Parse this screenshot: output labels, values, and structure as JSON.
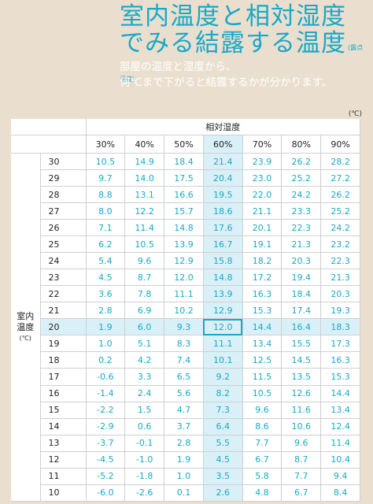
{
  "title": {
    "line1": "室内温度と相対湿度",
    "line2": "でみる結露する温度",
    "small": "(露点温度)"
  },
  "subtitle": {
    "line1": "部屋の温度と湿度から、",
    "line2": "何℃まで下がると結露するかが分かります。"
  },
  "table": {
    "unit_top": "(℃)",
    "col_group_label": "相対湿度",
    "row_group_label": "室内温度",
    "row_group_unit": "(℃)",
    "columns": [
      "30%",
      "40%",
      "50%",
      "60%",
      "70%",
      "80%",
      "90%"
    ],
    "rows": [
      {
        "t": "30",
        "v": [
          "10.5",
          "14.9",
          "18.4",
          "21.4",
          "23.9",
          "26.2",
          "28.2"
        ]
      },
      {
        "t": "29",
        "v": [
          "9.7",
          "14.0",
          "17.5",
          "20.4",
          "23.0",
          "25.2",
          "27.2"
        ]
      },
      {
        "t": "28",
        "v": [
          "8.8",
          "13.1",
          "16.6",
          "19.5",
          "22.0",
          "24.2",
          "26.2"
        ]
      },
      {
        "t": "27",
        "v": [
          "8.0",
          "12.2",
          "15.7",
          "18.6",
          "21.1",
          "23.3",
          "25.2"
        ]
      },
      {
        "t": "26",
        "v": [
          "7.1",
          "11.4",
          "14.8",
          "17.6",
          "20.1",
          "22.3",
          "24.2"
        ]
      },
      {
        "t": "25",
        "v": [
          "6.2",
          "10.5",
          "13.9",
          "16.7",
          "19.1",
          "21.3",
          "23.2"
        ]
      },
      {
        "t": "24",
        "v": [
          "5.4",
          "9.6",
          "12.9",
          "15.8",
          "18.2",
          "20.3",
          "22.3"
        ]
      },
      {
        "t": "23",
        "v": [
          "4.5",
          "8.7",
          "12.0",
          "14.8",
          "17.2",
          "19.4",
          "21.3"
        ]
      },
      {
        "t": "22",
        "v": [
          "3.6",
          "7.8",
          "11.1",
          "13.9",
          "16.3",
          "18.4",
          "20.3"
        ]
      },
      {
        "t": "21",
        "v": [
          "2.8",
          "6.9",
          "10.2",
          "12.9",
          "15.3",
          "17.4",
          "19.3"
        ]
      },
      {
        "t": "20",
        "v": [
          "1.9",
          "6.0",
          "9.3",
          "12.0",
          "14.4",
          "16.4",
          "18.3"
        ]
      },
      {
        "t": "19",
        "v": [
          "1.0",
          "5.1",
          "8.3",
          "11.1",
          "13.4",
          "15.5",
          "17.3"
        ]
      },
      {
        "t": "18",
        "v": [
          "0.2",
          "4.2",
          "7.4",
          "10.1",
          "12.5",
          "14.5",
          "16.3"
        ]
      },
      {
        "t": "17",
        "v": [
          "-0.6",
          "3.3",
          "6.5",
          "9.2",
          "11.5",
          "13.5",
          "15.3"
        ]
      },
      {
        "t": "16",
        "v": [
          "-1.4",
          "2.4",
          "5.6",
          "8.2",
          "10.5",
          "12.6",
          "14.4"
        ]
      },
      {
        "t": "15",
        "v": [
          "-2.2",
          "1.5",
          "4.7",
          "7.3",
          "9.6",
          "11.6",
          "13.4"
        ]
      },
      {
        "t": "14",
        "v": [
          "-2.9",
          "0.6",
          "3.7",
          "6.4",
          "8.6",
          "10.6",
          "12.4"
        ]
      },
      {
        "t": "13",
        "v": [
          "-3.7",
          "-0.1",
          "2.8",
          "5.5",
          "7.7",
          "9.6",
          "11.4"
        ]
      },
      {
        "t": "12",
        "v": [
          "-4.5",
          "-1.0",
          "1.9",
          "4.5",
          "6.7",
          "8.7",
          "10.4"
        ]
      },
      {
        "t": "11",
        "v": [
          "-5.2",
          "-1.8",
          "1.0",
          "3.5",
          "5.8",
          "7.7",
          "9.4"
        ]
      },
      {
        "t": "10",
        "v": [
          "-6.0",
          "-2.6",
          "0.1",
          "2.6",
          "4.8",
          "6.7",
          "8.4"
        ]
      }
    ],
    "highlight_column": "60%",
    "highlight_row": "20",
    "accent_color": "#1aa8c6",
    "highlight_color": "#daf0f8"
  }
}
